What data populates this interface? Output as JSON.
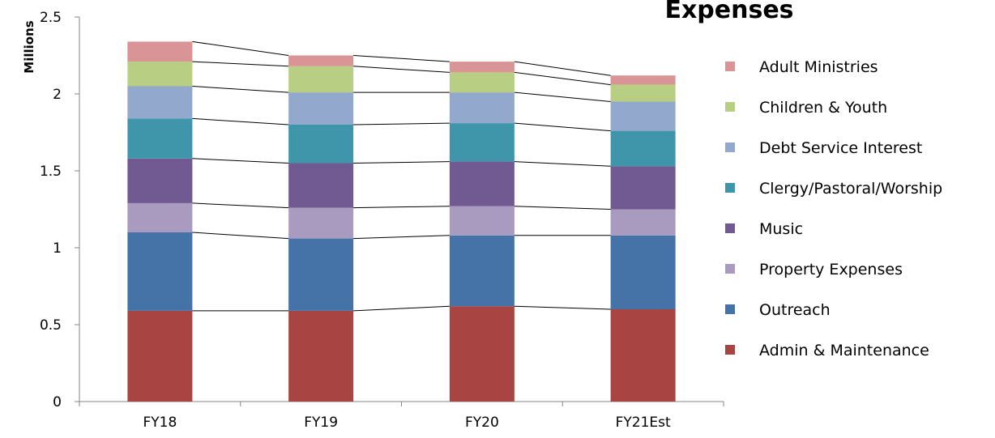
{
  "chart_data": {
    "type": "bar",
    "stacked": true,
    "title": "Expenses",
    "ylabel": "Millions",
    "xlabel": "",
    "ylim": [
      0,
      2.5
    ],
    "yticks": [
      "0",
      "0.5",
      "1",
      "1.5",
      "2",
      "2.5"
    ],
    "ytick_values": [
      0,
      0.5,
      1,
      1.5,
      2,
      2.5
    ],
    "categories": [
      "FY18",
      "FY19",
      "FY20",
      "FY21Est"
    ],
    "series_lines": true,
    "legend_position": "right",
    "series": [
      {
        "name": "Admin & Maintenance",
        "color": "#A84442",
        "values": [
          0.59,
          0.59,
          0.62,
          0.6
        ]
      },
      {
        "name": "Outreach",
        "color": "#4572A7",
        "values": [
          0.51,
          0.47,
          0.46,
          0.48
        ]
      },
      {
        "name": "Property Expenses",
        "color": "#A99BC0",
        "values": [
          0.19,
          0.2,
          0.19,
          0.17
        ]
      },
      {
        "name": "Music",
        "color": "#705A91",
        "values": [
          0.29,
          0.29,
          0.29,
          0.28
        ]
      },
      {
        "name": "Clergy/Pastoral/Worship",
        "color": "#3F96AA",
        "values": [
          0.26,
          0.25,
          0.25,
          0.23
        ]
      },
      {
        "name": "Debt Service Interest",
        "color": "#92A8CD",
        "values": [
          0.21,
          0.21,
          0.2,
          0.19
        ]
      },
      {
        "name": "Children & Youth",
        "color": "#B8CE83",
        "values": [
          0.16,
          0.17,
          0.13,
          0.11
        ]
      },
      {
        "name": "Adult Ministries",
        "color": "#D99595",
        "values": [
          0.13,
          0.07,
          0.07,
          0.06
        ]
      }
    ]
  }
}
